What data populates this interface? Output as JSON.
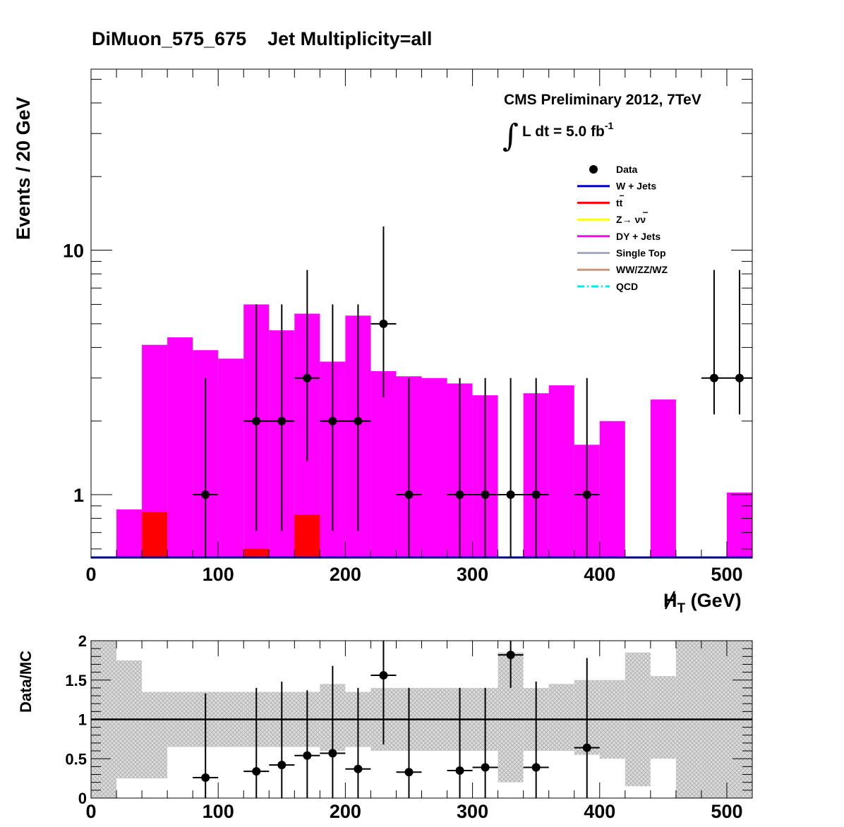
{
  "title": "DiMuon_575_675    Jet Multiplicity=all",
  "cms_label": "CMS Preliminary 2012, 7TeV",
  "lumi_label": "L dt = 5.0 fb",
  "lumi_exponent": "-1",
  "ylabel": "Events / 20 GeV",
  "xlabel_main": "H",
  "xlabel_sub": "T",
  "xlabel_unit": " (GeV)",
  "ratio_ylabel": "Data/MC",
  "colors": {
    "data": "#000000",
    "wjets": "#0000cc",
    "ttbar": "#ff0000",
    "znunu": "#ffff00",
    "dyjets": "#ff00ff",
    "singletop": "#a8a8c8",
    "diboson": "#cc9977",
    "qcd": "#00eeee",
    "uncertainty": "#c8c8c8"
  },
  "chart_data": [
    {
      "type": "bar",
      "stacked": true,
      "log_y": true,
      "xlim": [
        0,
        520
      ],
      "ylim": [
        0.55,
        55
      ],
      "bin_width": 20,
      "bin_edges_start": [
        0,
        20,
        40,
        60,
        80,
        100,
        120,
        140,
        160,
        180,
        200,
        220,
        240,
        260,
        280,
        300,
        320,
        340,
        360,
        380,
        400,
        420,
        440,
        460,
        480,
        500
      ],
      "series": [
        {
          "name": "t#bar{t}",
          "key": "ttbar",
          "values": [
            0,
            0,
            0.85,
            0,
            0,
            0,
            0.6,
            0,
            0.83,
            0,
            0,
            0,
            0,
            0,
            0,
            0,
            0,
            0,
            0,
            0,
            0,
            0,
            0,
            0,
            0,
            0
          ]
        },
        {
          "name": "DY + Jets",
          "key": "dyjets",
          "values": [
            0,
            0.87,
            4.1,
            4.4,
            3.9,
            3.6,
            6.0,
            4.7,
            5.5,
            3.5,
            5.4,
            3.2,
            3.05,
            3.0,
            2.85,
            2.55,
            0.55,
            2.6,
            2.8,
            1.6,
            2.0,
            0,
            2.45,
            0,
            0,
            1.02
          ]
        },
        {
          "name": "W + Jets",
          "key": "wjets",
          "values": [
            0,
            0,
            0,
            0,
            0,
            0,
            0,
            0,
            0,
            0,
            0,
            0,
            0,
            0,
            0,
            0,
            0,
            0,
            0,
            0,
            0,
            0,
            0,
            0,
            0,
            0
          ]
        }
      ],
      "data_points": [
        {
          "x": 90,
          "y": 1,
          "err_low": 0.83,
          "err_high": 2.0
        },
        {
          "x": 130,
          "y": 2,
          "err_low": 1.29,
          "err_high": 4.0
        },
        {
          "x": 150,
          "y": 2,
          "err_low": 1.29,
          "err_high": 4.0
        },
        {
          "x": 170,
          "y": 3,
          "err_low": 1.63,
          "err_high": 5.3
        },
        {
          "x": 190,
          "y": 2,
          "err_low": 1.29,
          "err_high": 4.0
        },
        {
          "x": 210,
          "y": 2,
          "err_low": 1.29,
          "err_high": 4.0
        },
        {
          "x": 230,
          "y": 5,
          "err_low": 2.5,
          "err_high": 7.5
        },
        {
          "x": 250,
          "y": 1,
          "err_low": 0.83,
          "err_high": 2.0
        },
        {
          "x": 290,
          "y": 1,
          "err_low": 0.83,
          "err_high": 2.0
        },
        {
          "x": 310,
          "y": 1,
          "err_low": 0.83,
          "err_high": 2.0
        },
        {
          "x": 330,
          "y": 1,
          "err_low": 0.83,
          "err_high": 2.0
        },
        {
          "x": 350,
          "y": 1,
          "err_low": 0.83,
          "err_high": 2.0
        },
        {
          "x": 390,
          "y": 1,
          "err_low": 0.83,
          "err_high": 2.0
        },
        {
          "x": 490,
          "y": 3,
          "err_low": 0.87,
          "err_high": 5.3
        },
        {
          "x": 510,
          "y": 3,
          "err_low": 0.87,
          "err_high": 5.3
        }
      ],
      "x_ticks": [
        "0",
        "100",
        "200",
        "300",
        "400",
        "500"
      ],
      "y_ticks": [
        "1",
        "10"
      ],
      "legend": [
        {
          "label": "Data",
          "key": "data",
          "style": "marker"
        },
        {
          "label": "W + Jets",
          "key": "wjets",
          "style": "line"
        },
        {
          "label": "tt",
          "key": "ttbar",
          "style": "line"
        },
        {
          "label": "Z→ νν",
          "key": "znunu",
          "style": "line"
        },
        {
          "label": "DY + Jets",
          "key": "dyjets",
          "style": "line"
        },
        {
          "label": "Single Top",
          "key": "singletop",
          "style": "line"
        },
        {
          "label": "WW/ZZ/WZ",
          "key": "diboson",
          "style": "line"
        },
        {
          "label": "QCD",
          "key": "qcd",
          "style": "dashline"
        }
      ],
      "legend_position": "top-right"
    },
    {
      "type": "scatter",
      "xlim": [
        0,
        520
      ],
      "ylim": [
        0,
        2
      ],
      "x_ticks": [
        "0",
        "100",
        "200",
        "300",
        "400",
        "500"
      ],
      "y_ticks": [
        "0",
        "0.5",
        "1",
        "1.5",
        "2"
      ],
      "reference_line": 1,
      "uncertainty_band": [
        [
          0,
          20,
          0,
          2
        ],
        [
          20,
          40,
          0.25,
          1.75
        ],
        [
          40,
          60,
          0.25,
          1.35
        ],
        [
          60,
          80,
          0.65,
          1.35
        ],
        [
          80,
          100,
          0.65,
          1.35
        ],
        [
          100,
          120,
          0.65,
          1.35
        ],
        [
          120,
          140,
          0.65,
          1.35
        ],
        [
          140,
          160,
          0.65,
          1.35
        ],
        [
          160,
          180,
          0.65,
          1.35
        ],
        [
          180,
          200,
          0.6,
          1.45
        ],
        [
          200,
          220,
          0.65,
          1.35
        ],
        [
          220,
          240,
          0.6,
          1.4
        ],
        [
          240,
          260,
          0.6,
          1.4
        ],
        [
          260,
          280,
          0.6,
          1.4
        ],
        [
          280,
          300,
          0.6,
          1.4
        ],
        [
          300,
          320,
          0.6,
          1.4
        ],
        [
          320,
          340,
          0.2,
          1.85
        ],
        [
          340,
          360,
          0.6,
          1.4
        ],
        [
          360,
          380,
          0.6,
          1.45
        ],
        [
          380,
          400,
          0.55,
          1.5
        ],
        [
          400,
          420,
          0.5,
          1.5
        ],
        [
          420,
          440,
          0.15,
          1.85
        ],
        [
          440,
          460,
          0.5,
          1.55
        ],
        [
          460,
          480,
          0,
          2
        ],
        [
          480,
          500,
          0,
          2
        ],
        [
          500,
          520,
          0,
          2
        ]
      ],
      "points": [
        {
          "x": 90,
          "y": 0.26,
          "err_low": 0.26,
          "err_high": 1.33
        },
        {
          "x": 130,
          "y": 0.34,
          "err_low": 0.34,
          "err_high": 1.4
        },
        {
          "x": 150,
          "y": 0.42,
          "err_low": 0.42,
          "err_high": 1.48
        },
        {
          "x": 170,
          "y": 0.54,
          "err_low": 0.54,
          "err_high": 1.37
        },
        {
          "x": 190,
          "y": 0.57,
          "err_low": 0.57,
          "err_high": 1.68
        },
        {
          "x": 210,
          "y": 0.37,
          "err_low": 0.37,
          "err_high": 1.4
        },
        {
          "x": 230,
          "y": 1.56,
          "err_low": 0.88,
          "err_high": 2.0
        },
        {
          "x": 250,
          "y": 0.33,
          "err_low": 0.33,
          "err_high": 1.4
        },
        {
          "x": 290,
          "y": 0.35,
          "err_low": 0.35,
          "err_high": 1.4
        },
        {
          "x": 310,
          "y": 0.39,
          "err_low": 0.39,
          "err_high": 1.4
        },
        {
          "x": 330,
          "y": 1.82,
          "err_low": 0.42,
          "err_high": 2.0
        },
        {
          "x": 350,
          "y": 0.39,
          "err_low": 0.39,
          "err_high": 1.48
        },
        {
          "x": 390,
          "y": 0.64,
          "err_low": 0.64,
          "err_high": 1.78
        }
      ]
    }
  ]
}
